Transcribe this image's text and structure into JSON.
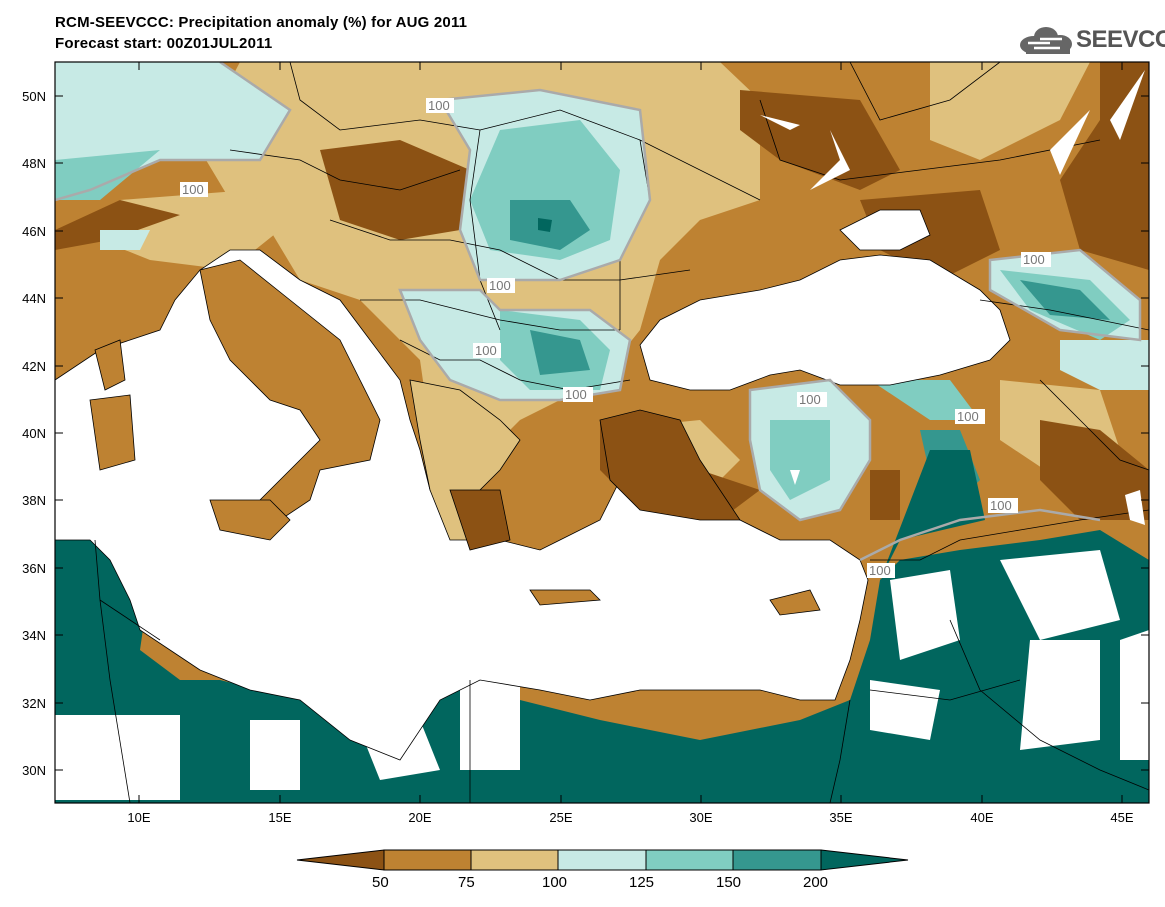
{
  "title": {
    "line1": "RCM-SEEVCCC: Precipitation anomaly (%) for AUG 2011",
    "line2": "Forecast start: 00Z01JUL2011"
  },
  "logo": {
    "text": "SEEVCCC",
    "icon": "cloud-icon"
  },
  "map": {
    "lat_labels": [
      "50N",
      "48N",
      "46N",
      "44N",
      "42N",
      "40N",
      "38N",
      "36N",
      "34N",
      "32N",
      "30N"
    ],
    "lon_labels": [
      "10E",
      "15E",
      "20E",
      "25E",
      "30E",
      "35E",
      "40E",
      "45E"
    ],
    "contour_label": "100"
  },
  "colorbar": {
    "labels": [
      "50",
      "75",
      "100",
      "125",
      "150",
      "200"
    ],
    "colors": [
      "#8c5214",
      "#be8232",
      "#dfc17e",
      "#c7eae5",
      "#80cdc1",
      "#35978f",
      "#01665e"
    ]
  }
}
